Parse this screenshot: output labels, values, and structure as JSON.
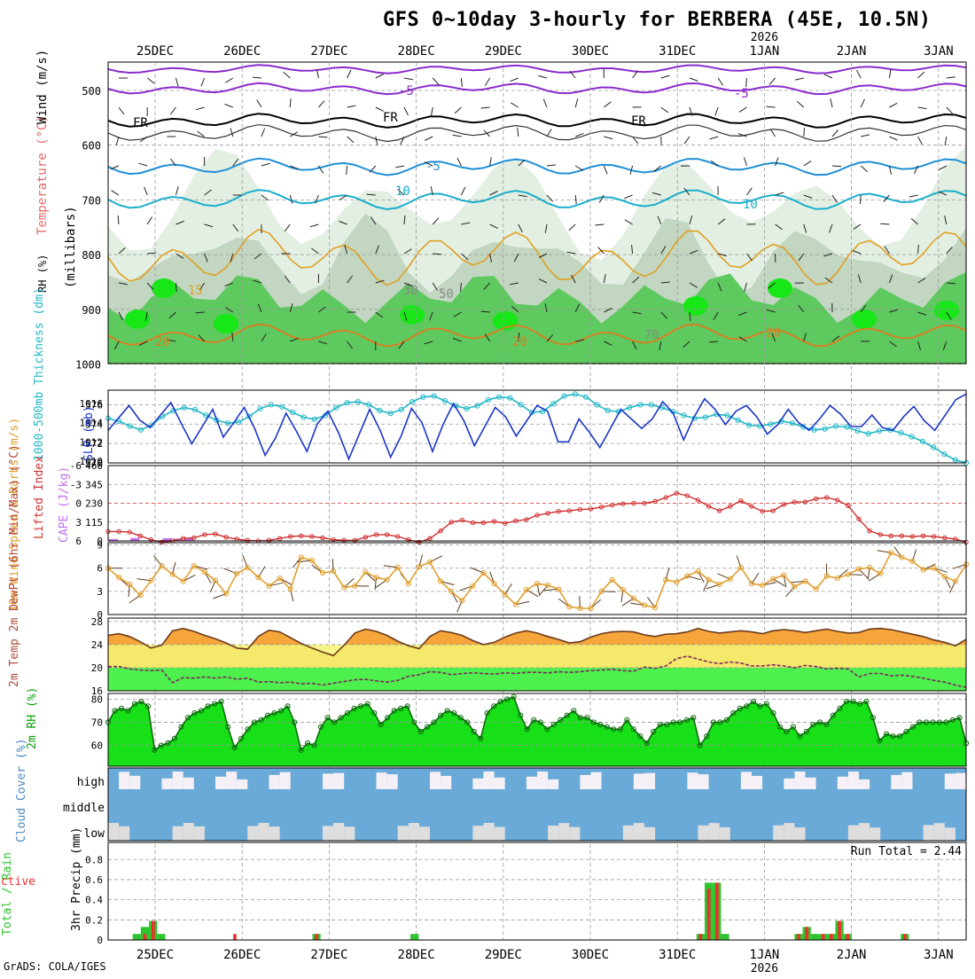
{
  "header": {
    "title": "GFS 0~10day 3-hourly for BERBERA (45E, 10.5N)",
    "credit": "GrADS: COLA/IGES"
  },
  "colors": {
    "rh_light": "#e3efe3",
    "rh_mid": "#c2d6c2",
    "rh_grey": "#9fb59f",
    "rh_green": "#5ec95e",
    "rh_bright": "#17e617",
    "temp_purple": "#8a2bcc",
    "temp_cyan": "#1aaecc",
    "temp_blue": "#1f8fd6",
    "temp_orange": "#e0a020",
    "freezing": "#000000",
    "thickness": "#22b8c8",
    "slp": "#1a35c8",
    "lifted": "#d03030",
    "cape": "#c070f0",
    "wind": "#e0a030",
    "temp_fill": "#f5a53a",
    "dew_fill": "#f5f575",
    "rh_fill": "#18e018",
    "cloud": "#6aaad8",
    "precip_total": "#2ec42e",
    "precip_conv": "#f03030"
  },
  "chart_data": {
    "time_axis": {
      "start": "2025-12-24 12Z",
      "step_hours": 3,
      "steps": 80,
      "day_labels": [
        "25DEC",
        "26DEC",
        "27DEC",
        "28DEC",
        "29DEC",
        "30DEC",
        "31DEC",
        "1JAN",
        "2JAN",
        "3JAN"
      ],
      "year_label": "2026"
    },
    "panels": [
      {
        "name": "upper-air",
        "type": "heatmap",
        "ylabel_rh": "RH (%)",
        "ylabel_temp": "Temperature (°C)",
        "ylabel_wind": "Wind (m/s)",
        "ylabel_axis": "(millibars)",
        "y_ticks": [
          500,
          600,
          700,
          800,
          900,
          1000
        ],
        "contour_labels": [
          "-5",
          "FR",
          "10",
          "15",
          "20",
          "30",
          "50",
          "70"
        ]
      },
      {
        "name": "thickness-slp",
        "type": "line",
        "ylabel_left": "1000-500mb Thickness (dm)",
        "ylabel_right": "SLP (mb)",
        "left_ticks": [
          "576",
          "574",
          "572",
          "570"
        ],
        "right_ticks": [
          "1016",
          "1014",
          "1012",
          "1010"
        ],
        "ylim_left": [
          570,
          577.5
        ],
        "ylim_right": [
          1009.8,
          1017.4
        ],
        "thickness": [
          574.6,
          574.3,
          573.8,
          573.4,
          573.9,
          574.8,
          575.4,
          575.7,
          575.5,
          574.9,
          574.4,
          574.1,
          574.2,
          574.8,
          575.6,
          576.0,
          575.8,
          575.2,
          574.7,
          574.5,
          574.9,
          575.7,
          576.2,
          576.3,
          576.0,
          575.4,
          575.1,
          575.5,
          576.3,
          576.8,
          576.9,
          576.4,
          575.9,
          575.6,
          575.9,
          576.5,
          576.8,
          576.7,
          576.0,
          575.2,
          575.3,
          576.1,
          576.9,
          577.1,
          576.8,
          576.0,
          575.4,
          575.3,
          575.7,
          576.0,
          576.0,
          575.7,
          575.3,
          574.9,
          574.6,
          574.7,
          575.0,
          574.9,
          574.4,
          573.9,
          573.8,
          574.0,
          574.3,
          574.1,
          573.7,
          573.4,
          573.5,
          573.8,
          573.7,
          573.3,
          573.0,
          573.3,
          573.4,
          573.1,
          572.7,
          572.2,
          571.6,
          570.9,
          570.3,
          570.0
        ],
        "slp": [
          1013.2,
          1014.5,
          1015.8,
          1014.3,
          1013.5,
          1014.8,
          1016.1,
          1013.9,
          1011.8,
          1013.6,
          1015.4,
          1012.5,
          1014.0,
          1015.6,
          1013.4,
          1010.6,
          1012.4,
          1015.0,
          1013.1,
          1011.0,
          1013.9,
          1015.2,
          1013.0,
          1010.2,
          1012.8,
          1015.4,
          1013.2,
          1010.4,
          1012.6,
          1015.5,
          1014.0,
          1011.0,
          1013.8,
          1016.0,
          1014.2,
          1011.6,
          1013.6,
          1015.6,
          1014.6,
          1012.6,
          1014.2,
          1015.8,
          1015.2,
          1012.0,
          1012.0,
          1014.4,
          1013.0,
          1011.4,
          1013.4,
          1015.4,
          1014.4,
          1013.4,
          1014.4,
          1016.2,
          1015.0,
          1012.2,
          1014.6,
          1016.5,
          1015.4,
          1013.8,
          1015.2,
          1015.8,
          1014.6,
          1012.8,
          1013.8,
          1015.4,
          1014.0,
          1013.2,
          1014.4,
          1015.8,
          1014.9,
          1013.6,
          1013.6,
          1014.8,
          1013.5,
          1013.2,
          1014.6,
          1015.7,
          1014.2,
          1013.2,
          1014.8,
          1016.4,
          1017.0
        ]
      },
      {
        "name": "stability",
        "type": "bar",
        "ylabel_left": "Lifted Index",
        "ylabel_right": "CAPE (J/kg)",
        "li_ticks": [
          "-6",
          "-3",
          "0",
          "3",
          "6"
        ],
        "cape_ticks": [
          "460",
          "345",
          "230",
          "115",
          "0"
        ],
        "ylim_li": [
          6,
          -6
        ],
        "ylim_cape": [
          0,
          460
        ],
        "lifted_index": [
          4.5,
          4.5,
          4.6,
          5.2,
          5.8,
          6.2,
          6.0,
          5.6,
          5.5,
          5.0,
          4.9,
          5.4,
          5.7,
          5.9,
          6.0,
          5.9,
          5.6,
          5.3,
          5.2,
          5.3,
          5.5,
          5.8,
          5.9,
          5.9,
          5.4,
          5.0,
          5.0,
          5.3,
          5.8,
          6.2,
          5.6,
          4.4,
          3.0,
          2.7,
          3.1,
          3.1,
          2.9,
          3.2,
          2.8,
          2.6,
          1.9,
          1.6,
          1.3,
          1.2,
          1.0,
          0.9,
          0.6,
          0.3,
          0.1,
          0.0,
          0.0,
          -0.3,
          -0.9,
          -1.6,
          -1.2,
          -0.5,
          0.5,
          1.2,
          0.5,
          -0.4,
          0.5,
          1.3,
          1.2,
          0.2,
          -0.2,
          -0.2,
          -0.7,
          -0.9,
          -0.5,
          0.4,
          2.5,
          4.4,
          5.0,
          5.2,
          5.2,
          5.3,
          5.2,
          5.3,
          5.5,
          5.7,
          6.2
        ],
        "cape": [
          12,
          0,
          18,
          0,
          0,
          16,
          14,
          15,
          0,
          0,
          0,
          0,
          0,
          0,
          0,
          0,
          0,
          0,
          0,
          0,
          0,
          0,
          0,
          0,
          0,
          0,
          0,
          0,
          0,
          0,
          0,
          0,
          0,
          0,
          0,
          0,
          0,
          0,
          0,
          0,
          0,
          0,
          0,
          0,
          0,
          0,
          0,
          0,
          0,
          0,
          0,
          0,
          0,
          0,
          0,
          0,
          0,
          0,
          0,
          0,
          0,
          0,
          0,
          0,
          0,
          0,
          0,
          0,
          0,
          0,
          0,
          0,
          0,
          0,
          0,
          0,
          0,
          0,
          0,
          0,
          0
        ]
      },
      {
        "name": "wind10m",
        "type": "line",
        "ylabel": "10m Wind Speed & Barbs (m/s)",
        "ticks": [
          "9",
          "6",
          "3",
          "0"
        ],
        "ylim": [
          0,
          9.3
        ],
        "speed": [
          6.0,
          4.8,
          3.9,
          2.5,
          4.4,
          6.3,
          5.2,
          4.3,
          6.3,
          5.5,
          4.4,
          2.7,
          5.3,
          6.1,
          4.8,
          3.7,
          4.7,
          3.3,
          7.4,
          7.0,
          5.4,
          5.6,
          3.5,
          3.7,
          5.5,
          4.8,
          4.5,
          6.1,
          4.0,
          6.2,
          6.8,
          4.3,
          3.0,
          1.8,
          3.7,
          5.4,
          4.0,
          2.6,
          1.3,
          3.2,
          4.0,
          3.8,
          3.3,
          1.0,
          0.8,
          0.8,
          3.0,
          4.5,
          3.2,
          2.1,
          1.2,
          0.9,
          4.5,
          4.2,
          5.0,
          5.6,
          4.5,
          3.9,
          4.6,
          6.1,
          4.0,
          3.8,
          4.6,
          5.1,
          3.6,
          4.3,
          3.3,
          5.0,
          4.7,
          5.2,
          5.9,
          6.1,
          5.3,
          8.0,
          7.4,
          6.9,
          5.8,
          6.0,
          4.9,
          4.3,
          6.5
        ]
      },
      {
        "name": "temperature",
        "type": "area",
        "ylabel": "2m Temp 2m DewPt (6hr Min/Max) (°C)",
        "ticks": [
          "28",
          "24",
          "20",
          "16"
        ],
        "ylim": [
          16,
          28.6
        ],
        "temp": [
          25.6,
          25.9,
          25.4,
          24.5,
          23.4,
          23.9,
          26.4,
          26.8,
          26.3,
          25.6,
          25.0,
          24.3,
          23.4,
          23.2,
          25.4,
          26.5,
          26.2,
          25.2,
          24.2,
          23.4,
          22.7,
          22.1,
          23.9,
          26.0,
          26.7,
          26.3,
          25.6,
          24.6,
          23.8,
          23.3,
          25.4,
          26.4,
          26.1,
          25.6,
          24.7,
          24.0,
          24.4,
          25.3,
          26.0,
          26.4,
          26.0,
          25.4,
          24.9,
          24.3,
          24.5,
          25.3,
          25.9,
          26.2,
          26.3,
          26.2,
          25.7,
          25.4,
          25.8,
          25.9,
          26.2,
          26.8,
          26.3,
          26.0,
          26.2,
          26.4,
          26.2,
          25.9,
          26.4,
          26.6,
          26.4,
          26.1,
          26.4,
          26.7,
          26.3,
          26.0,
          26.1,
          26.7,
          26.8,
          26.6,
          26.2,
          25.8,
          25.4,
          24.8,
          24.4,
          23.8,
          24.9
        ],
        "dewpoint": [
          20.2,
          20.2,
          19.8,
          19.6,
          19.5,
          19.6,
          17.4,
          18.3,
          18.2,
          18.4,
          18.2,
          18.4,
          18.0,
          18.2,
          17.5,
          17.6,
          17.4,
          17.5,
          17.2,
          17.3,
          17.0,
          17.3,
          17.6,
          17.9,
          18.0,
          17.7,
          17.5,
          17.8,
          18.5,
          18.8,
          19.3,
          19.2,
          18.8,
          19.0,
          19.1,
          19.0,
          18.9,
          19.1,
          19.0,
          19.2,
          19.2,
          19.1,
          19.3,
          19.2,
          19.3,
          19.5,
          19.6,
          19.7,
          19.5,
          19.4,
          20.1,
          19.9,
          20.3,
          21.6,
          22.0,
          21.5,
          21.0,
          20.7,
          21.0,
          20.8,
          20.3,
          20.3,
          20.5,
          20.3,
          20.0,
          20.4,
          20.2,
          19.8,
          19.9,
          19.8,
          18.4,
          19.0,
          19.0,
          18.6,
          18.7,
          18.5,
          18.2,
          17.8,
          17.5,
          17.0,
          16.6
        ]
      },
      {
        "name": "rh2m",
        "type": "area",
        "ylabel": "2m RH (%)",
        "ticks": [
          "80",
          "70",
          "60"
        ],
        "ylim": [
          51,
          82.5
        ],
        "rh": [
          70,
          75,
          76,
          75,
          78,
          79,
          77,
          58,
          60,
          61,
          63,
          68,
          72,
          74,
          75,
          77,
          78,
          79,
          68,
          59,
          63,
          67,
          70,
          71,
          73,
          74,
          75,
          77,
          70,
          58,
          61,
          60,
          68,
          72,
          70,
          72,
          74,
          76,
          77,
          78,
          74,
          69,
          72,
          75,
          76,
          77,
          70,
          66,
          68,
          70,
          73,
          75,
          74,
          72,
          70,
          66,
          63,
          74,
          77,
          79,
          80,
          81,
          73,
          67,
          71,
          70,
          67,
          69,
          71,
          73,
          75,
          72,
          72,
          70,
          69,
          68,
          67,
          67,
          71,
          67,
          64,
          61,
          66,
          69,
          69,
          70,
          70,
          71,
          72,
          60,
          64,
          70,
          70,
          71,
          74,
          76,
          77,
          79,
          77,
          78,
          74,
          68,
          66,
          68,
          64,
          66,
          69,
          70,
          69,
          73,
          76,
          79,
          79,
          78,
          79,
          72,
          62,
          65,
          64,
          64,
          66,
          68,
          70,
          70,
          70,
          70,
          70,
          71,
          72,
          61
        ]
      },
      {
        "name": "cloud-cover",
        "type": "heatmap",
        "ylabel": "Cloud Cover (%)",
        "row_labels": [
          "high",
          "middle",
          "low"
        ]
      },
      {
        "name": "precip",
        "type": "bar",
        "ylabel_left": "Total / Rain",
        "ylabel_conv": "Convective",
        "ylabel": "3hr Precip (mm)",
        "ticks": [
          "0.8",
          "0.6",
          "0.4",
          "0.2",
          "0"
        ],
        "ylim": [
          0,
          0.97
        ],
        "run_total": "Run Total = 2.44",
        "total": [
          0,
          0,
          0,
          0.06,
          0.13,
          0.19,
          0.06,
          0,
          0,
          0,
          0,
          0,
          0,
          0,
          0,
          0,
          0,
          0,
          0,
          0,
          0,
          0,
          0,
          0,
          0,
          0.06,
          0,
          0,
          0,
          0,
          0,
          0,
          0,
          0,
          0,
          0,
          0,
          0.06,
          0,
          0,
          0,
          0,
          0,
          0,
          0,
          0,
          0,
          0,
          0,
          0,
          0,
          0,
          0,
          0,
          0,
          0,
          0,
          0,
          0,
          0,
          0,
          0,
          0,
          0,
          0,
          0,
          0,
          0,
          0,
          0,
          0,
          0,
          0.06,
          0.57,
          0.57,
          0.06,
          0,
          0,
          0,
          0,
          0,
          0,
          0,
          0,
          0.06,
          0.13,
          0.06,
          0.06,
          0.06,
          0.19,
          0.06,
          0,
          0,
          0,
          0,
          0,
          0,
          0.06,
          0,
          0,
          0,
          0,
          0,
          0,
          0
        ],
        "convective": [
          0,
          0,
          0,
          0,
          0.06,
          0.19,
          0,
          0,
          0,
          0,
          0,
          0,
          0,
          0,
          0,
          0.06,
          0,
          0,
          0,
          0,
          0,
          0,
          0,
          0,
          0,
          0.06,
          0,
          0,
          0,
          0,
          0,
          0,
          0,
          0,
          0,
          0,
          0,
          0,
          0,
          0,
          0,
          0,
          0,
          0,
          0,
          0,
          0,
          0,
          0,
          0,
          0,
          0,
          0,
          0,
          0,
          0,
          0,
          0,
          0,
          0,
          0,
          0,
          0,
          0,
          0,
          0,
          0,
          0,
          0,
          0,
          0,
          0,
          0.06,
          0.51,
          0.57,
          0,
          0,
          0,
          0,
          0,
          0,
          0,
          0,
          0,
          0.06,
          0.13,
          0,
          0.06,
          0.06,
          0.19,
          0.06,
          0,
          0,
          0,
          0,
          0,
          0,
          0.06,
          0,
          0,
          0,
          0,
          0,
          0,
          0
        ]
      }
    ]
  }
}
